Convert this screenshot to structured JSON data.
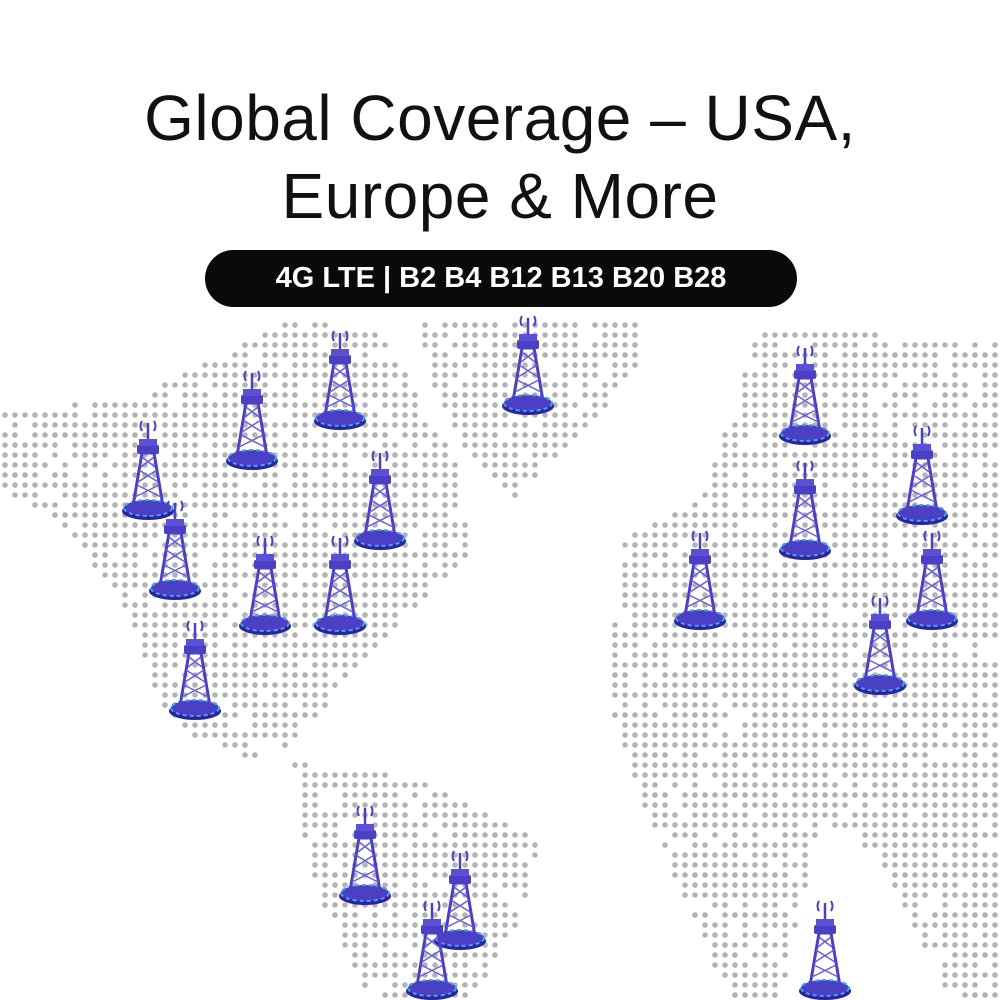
{
  "headline": {
    "line1": "Global Coverage – USA,",
    "line2": "Europe & More"
  },
  "bands_badge": "4G LTE | B2 B4 B12 B13 B20 B28",
  "colors": {
    "dot": "#b3b3b3",
    "tower": "#4b3fc4",
    "tower_glow": "#3fa0ff",
    "badge_bg": "#0a0a0a"
  },
  "icons": [
    "cell-tower-icon"
  ]
}
